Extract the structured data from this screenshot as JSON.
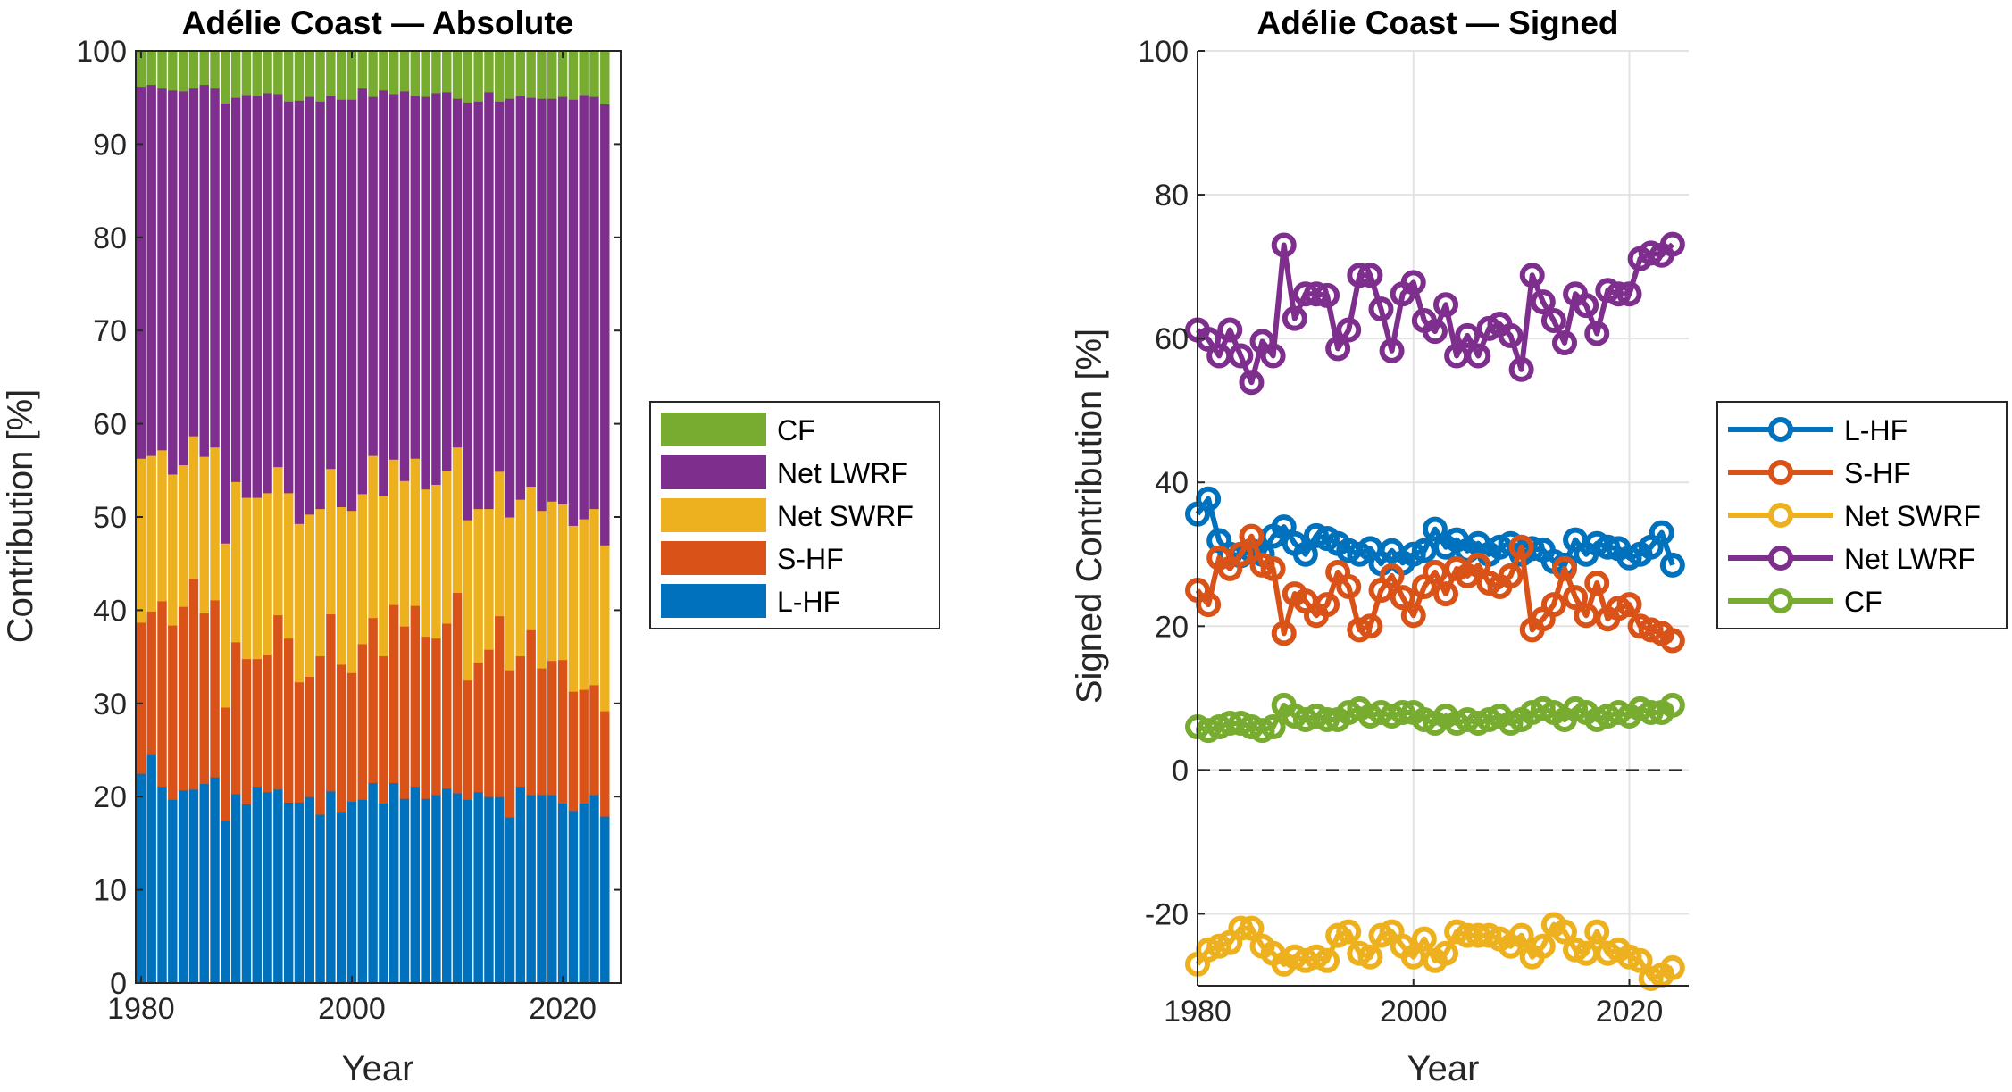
{
  "chart_data": [
    {
      "type": "bar",
      "stacked": true,
      "title": "Adélie Coast — Absolute",
      "xlabel": "Year",
      "ylabel": "Contribution [%]",
      "xlim": [
        1979.5,
        2025.5
      ],
      "ylim": [
        0,
        100
      ],
      "xticks": [
        1980,
        2000,
        2020
      ],
      "yticks": [
        0,
        10,
        20,
        30,
        40,
        50,
        60,
        70,
        80,
        90,
        100
      ],
      "legend_position": "outside-right",
      "legend_order": [
        "CF",
        "Net LWRF",
        "Net SWRF",
        "S-HF",
        "L-HF"
      ],
      "x": [
        1980,
        1981,
        1982,
        1983,
        1984,
        1985,
        1986,
        1987,
        1988,
        1989,
        1990,
        1991,
        1992,
        1993,
        1994,
        1995,
        1996,
        1997,
        1998,
        1999,
        2000,
        2001,
        2002,
        2003,
        2004,
        2005,
        2006,
        2007,
        2008,
        2009,
        2010,
        2011,
        2012,
        2013,
        2014,
        2015,
        2016,
        2017,
        2018,
        2019,
        2020,
        2021,
        2022,
        2023,
        2024
      ],
      "series": [
        {
          "name": "L-HF",
          "color": "#0072BD",
          "values": [
            22.5,
            24.5,
            21.1,
            19.7,
            20.7,
            20.8,
            21.4,
            22.1,
            17.4,
            20.3,
            19.2,
            21.1,
            20.5,
            20.8,
            19.4,
            19.4,
            20.0,
            18.1,
            20.6,
            18.4,
            19.5,
            19.7,
            21.5,
            19.3,
            21.5,
            19.8,
            21.1,
            19.8,
            20.2,
            20.9,
            20.4,
            19.7,
            20.5,
            20.0,
            20.0,
            17.8,
            21.1,
            20.2,
            20.2,
            20.2,
            19.3,
            18.5,
            19.3,
            20.2,
            17.9
          ]
        },
        {
          "name": "S-HF",
          "color": "#D95319",
          "values": [
            16.2,
            15.4,
            19.9,
            18.7,
            19.7,
            22.6,
            18.3,
            19.0,
            12.2,
            16.3,
            15.6,
            13.7,
            14.7,
            18.7,
            17.6,
            12.9,
            12.9,
            17.0,
            19.0,
            15.8,
            13.8,
            16.7,
            17.7,
            15.8,
            19.1,
            18.5,
            19.4,
            17.4,
            16.8,
            17.7,
            21.5,
            12.8,
            13.9,
            15.8,
            19.4,
            15.8,
            14.0,
            17.7,
            13.6,
            14.4,
            15.4,
            12.8,
            12.2,
            11.8,
            11.3
          ]
        },
        {
          "name": "Net SWRF",
          "color": "#EDB120",
          "values": [
            17.6,
            16.7,
            16.2,
            16.2,
            15.2,
            15.3,
            16.8,
            16.4,
            17.6,
            17.2,
            17.3,
            17.3,
            17.4,
            15.9,
            15.6,
            17.0,
            17.4,
            15.8,
            15.6,
            16.9,
            17.4,
            16.1,
            17.4,
            17.2,
            15.6,
            15.6,
            15.8,
            15.8,
            16.5,
            16.4,
            15.6,
            17.2,
            16.5,
            15.1,
            15.5,
            16.4,
            16.8,
            15.4,
            16.9,
            17.1,
            16.7,
            17.8,
            18.3,
            18.9,
            17.8
          ]
        },
        {
          "name": "Net LWRF",
          "color": "#7E2F8E",
          "values": [
            39.9,
            39.8,
            38.8,
            41.2,
            40.1,
            37.3,
            39.9,
            38.5,
            47.2,
            41.2,
            43.2,
            43.1,
            42.9,
            40.0,
            42.0,
            45.4,
            44.8,
            43.7,
            40.0,
            43.7,
            44.1,
            43.5,
            38.5,
            43.5,
            39.2,
            41.8,
            38.9,
            42.1,
            42.0,
            40.6,
            37.4,
            44.8,
            43.7,
            44.7,
            39.7,
            44.9,
            43.3,
            41.7,
            44.2,
            43.2,
            43.7,
            45.7,
            45.5,
            44.2,
            47.3
          ]
        },
        {
          "name": "CF",
          "color": "#77AC30",
          "values": [
            3.8,
            3.6,
            4.0,
            4.2,
            4.3,
            4.0,
            3.6,
            4.0,
            5.6,
            5.0,
            4.7,
            4.8,
            4.5,
            4.6,
            5.4,
            5.3,
            4.9,
            5.4,
            4.8,
            5.2,
            5.2,
            4.0,
            4.9,
            4.2,
            4.6,
            4.3,
            4.8,
            4.9,
            4.5,
            4.4,
            5.1,
            5.5,
            5.4,
            4.4,
            5.4,
            5.1,
            4.8,
            5.0,
            5.1,
            5.1,
            4.9,
            5.2,
            4.7,
            4.9,
            5.7
          ]
        }
      ]
    },
    {
      "type": "line",
      "title": "Adélie Coast — Signed",
      "xlabel": "Year",
      "ylabel": "Signed Contribution [%]",
      "xlim": [
        1980,
        2025.5
      ],
      "ylim": [
        -30,
        100
      ],
      "xticks": [
        1980,
        2000,
        2020
      ],
      "yticks": [
        -20,
        0,
        20,
        40,
        60,
        80,
        100
      ],
      "grid": true,
      "zero_line": "dashed",
      "marker": "circle",
      "legend_position": "outside-right",
      "x": [
        1980,
        1981,
        1982,
        1983,
        1984,
        1985,
        1986,
        1987,
        1988,
        1989,
        1990,
        1991,
        1992,
        1993,
        1994,
        1995,
        1996,
        1997,
        1998,
        1999,
        2000,
        2001,
        2002,
        2003,
        2004,
        2005,
        2006,
        2007,
        2008,
        2009,
        2010,
        2011,
        2012,
        2013,
        2014,
        2015,
        2016,
        2017,
        2018,
        2019,
        2020,
        2021,
        2022,
        2023,
        2024
      ],
      "series": [
        {
          "name": "L-HF",
          "color": "#0072BD",
          "values": [
            35.6,
            37.7,
            31.9,
            30.0,
            29.8,
            30.5,
            30.0,
            32.5,
            33.8,
            31.5,
            30.0,
            32.6,
            32.2,
            31.5,
            30.5,
            30.0,
            30.8,
            28.7,
            30.5,
            28.8,
            30.0,
            30.5,
            33.5,
            31.0,
            32.0,
            30.5,
            31.5,
            30.0,
            31.0,
            31.5,
            30.0,
            30.8,
            30.6,
            29.0,
            28.5,
            32.0,
            30.0,
            31.5,
            31.0,
            30.8,
            29.5,
            30.0,
            31.0,
            33.0,
            28.5
          ]
        },
        {
          "name": "S-HF",
          "color": "#D95319",
          "values": [
            25.0,
            23.0,
            29.5,
            28.0,
            30.0,
            32.5,
            28.5,
            28.0,
            19.0,
            24.5,
            23.5,
            21.5,
            23.0,
            27.5,
            25.5,
            19.5,
            20.0,
            25.0,
            27.0,
            24.0,
            21.5,
            25.5,
            27.5,
            24.5,
            28.0,
            27.0,
            28.5,
            26.0,
            25.5,
            27.0,
            31.0,
            19.5,
            21.0,
            23.0,
            28.0,
            24.0,
            21.5,
            26.0,
            21.0,
            22.5,
            23.0,
            20.0,
            19.5,
            19.0,
            18.0
          ]
        },
        {
          "name": "Net SWRF",
          "color": "#EDB120",
          "values": [
            -27,
            -25,
            -24.5,
            -24,
            -22,
            -22,
            -24.5,
            -25.5,
            -27,
            -26,
            -26.5,
            -26,
            -26.5,
            -23,
            -22.5,
            -25.5,
            -26,
            -23,
            -22.5,
            -24.5,
            -26,
            -23.5,
            -26.5,
            -25.5,
            -22.5,
            -23,
            -23,
            -23,
            -23.5,
            -24.5,
            -23,
            -26,
            -24.5,
            -21.5,
            -22.5,
            -25,
            -25.5,
            -22.5,
            -25.5,
            -25,
            -26,
            -26.5,
            -29,
            -28.5,
            -27.5
          ]
        },
        {
          "name": "Net LWRF",
          "color": "#7E2F8E",
          "values": [
            61.2,
            59.9,
            57.6,
            61.2,
            57.6,
            53.9,
            59.6,
            57.6,
            73.0,
            62.8,
            66.2,
            66.2,
            66.0,
            58.6,
            61.2,
            68.8,
            68.8,
            64.1,
            58.3,
            66.2,
            67.8,
            62.5,
            61.0,
            64.7,
            57.6,
            60.4,
            57.6,
            61.4,
            62.0,
            60.4,
            55.7,
            68.8,
            65.1,
            62.5,
            59.4,
            66.2,
            64.6,
            60.7,
            66.7,
            66.2,
            66.2,
            71.1,
            71.9,
            71.6,
            73.1
          ]
        },
        {
          "name": "CF",
          "color": "#77AC30",
          "values": [
            6.0,
            5.5,
            6.0,
            6.5,
            6.5,
            6.0,
            5.5,
            6.0,
            9.0,
            7.5,
            7.0,
            7.5,
            7.0,
            7.0,
            8.0,
            8.5,
            7.5,
            8.0,
            7.5,
            8.0,
            8.0,
            7.0,
            6.5,
            7.5,
            6.5,
            7.0,
            6.5,
            7.0,
            7.5,
            6.5,
            7.0,
            8.0,
            8.5,
            8.0,
            7.0,
            8.5,
            8.0,
            7.0,
            7.5,
            8.0,
            7.5,
            8.5,
            8.0,
            8.0,
            9.0
          ]
        }
      ]
    }
  ]
}
